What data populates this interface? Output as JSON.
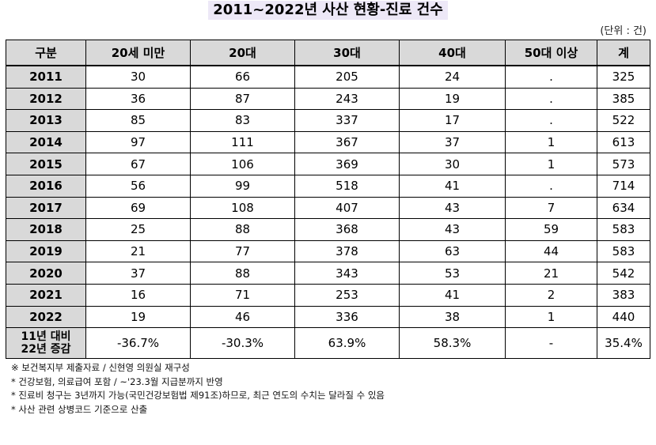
{
  "title": "2011~2022년 사산 현황-진료 건수",
  "unit": "(단위 : 건)",
  "table": {
    "headers": [
      "구분",
      "20세 미만",
      "20대",
      "30대",
      "40대",
      "50대 이상",
      "계"
    ],
    "rows": [
      [
        "2011",
        "30",
        "66",
        "205",
        "24",
        ".",
        "325"
      ],
      [
        "2012",
        "36",
        "87",
        "243",
        "19",
        ".",
        "385"
      ],
      [
        "2013",
        "85",
        "83",
        "337",
        "17",
        ".",
        "522"
      ],
      [
        "2014",
        "97",
        "111",
        "367",
        "37",
        "1",
        "613"
      ],
      [
        "2015",
        "67",
        "106",
        "369",
        "30",
        "1",
        "573"
      ],
      [
        "2016",
        "56",
        "99",
        "518",
        "41",
        ".",
        "714"
      ],
      [
        "2017",
        "69",
        "108",
        "407",
        "43",
        "7",
        "634"
      ],
      [
        "2018",
        "25",
        "88",
        "368",
        "43",
        "59",
        "583"
      ],
      [
        "2019",
        "21",
        "77",
        "378",
        "63",
        "44",
        "583"
      ],
      [
        "2020",
        "37",
        "88",
        "343",
        "53",
        "21",
        "542"
      ],
      [
        "2021",
        "16",
        "71",
        "253",
        "41",
        "2",
        "383"
      ],
      [
        "2022",
        "19",
        "46",
        "336",
        "38",
        "1",
        "440"
      ]
    ],
    "change_row": {
      "label_line1": "11년 대비",
      "label_line2": "22년 증감",
      "values": [
        "-36.7%",
        "-30.3%",
        "63.9%",
        "58.3%",
        "-",
        "35.4%"
      ]
    }
  },
  "notes": [
    "※ 보건복지부 제출자료 / 신현영 의원실 재구성",
    "* 건강보험, 의료급여 포함 / ~'23.3월 지급분까지 반영",
    "* 진료비 청구는 3년까지 가능(국민건강보험법 제91조)하므로, 최근 연도의 수치는 달라질 수 있음",
    "* 사산 관련 상병코드 기준으로 산출"
  ]
}
